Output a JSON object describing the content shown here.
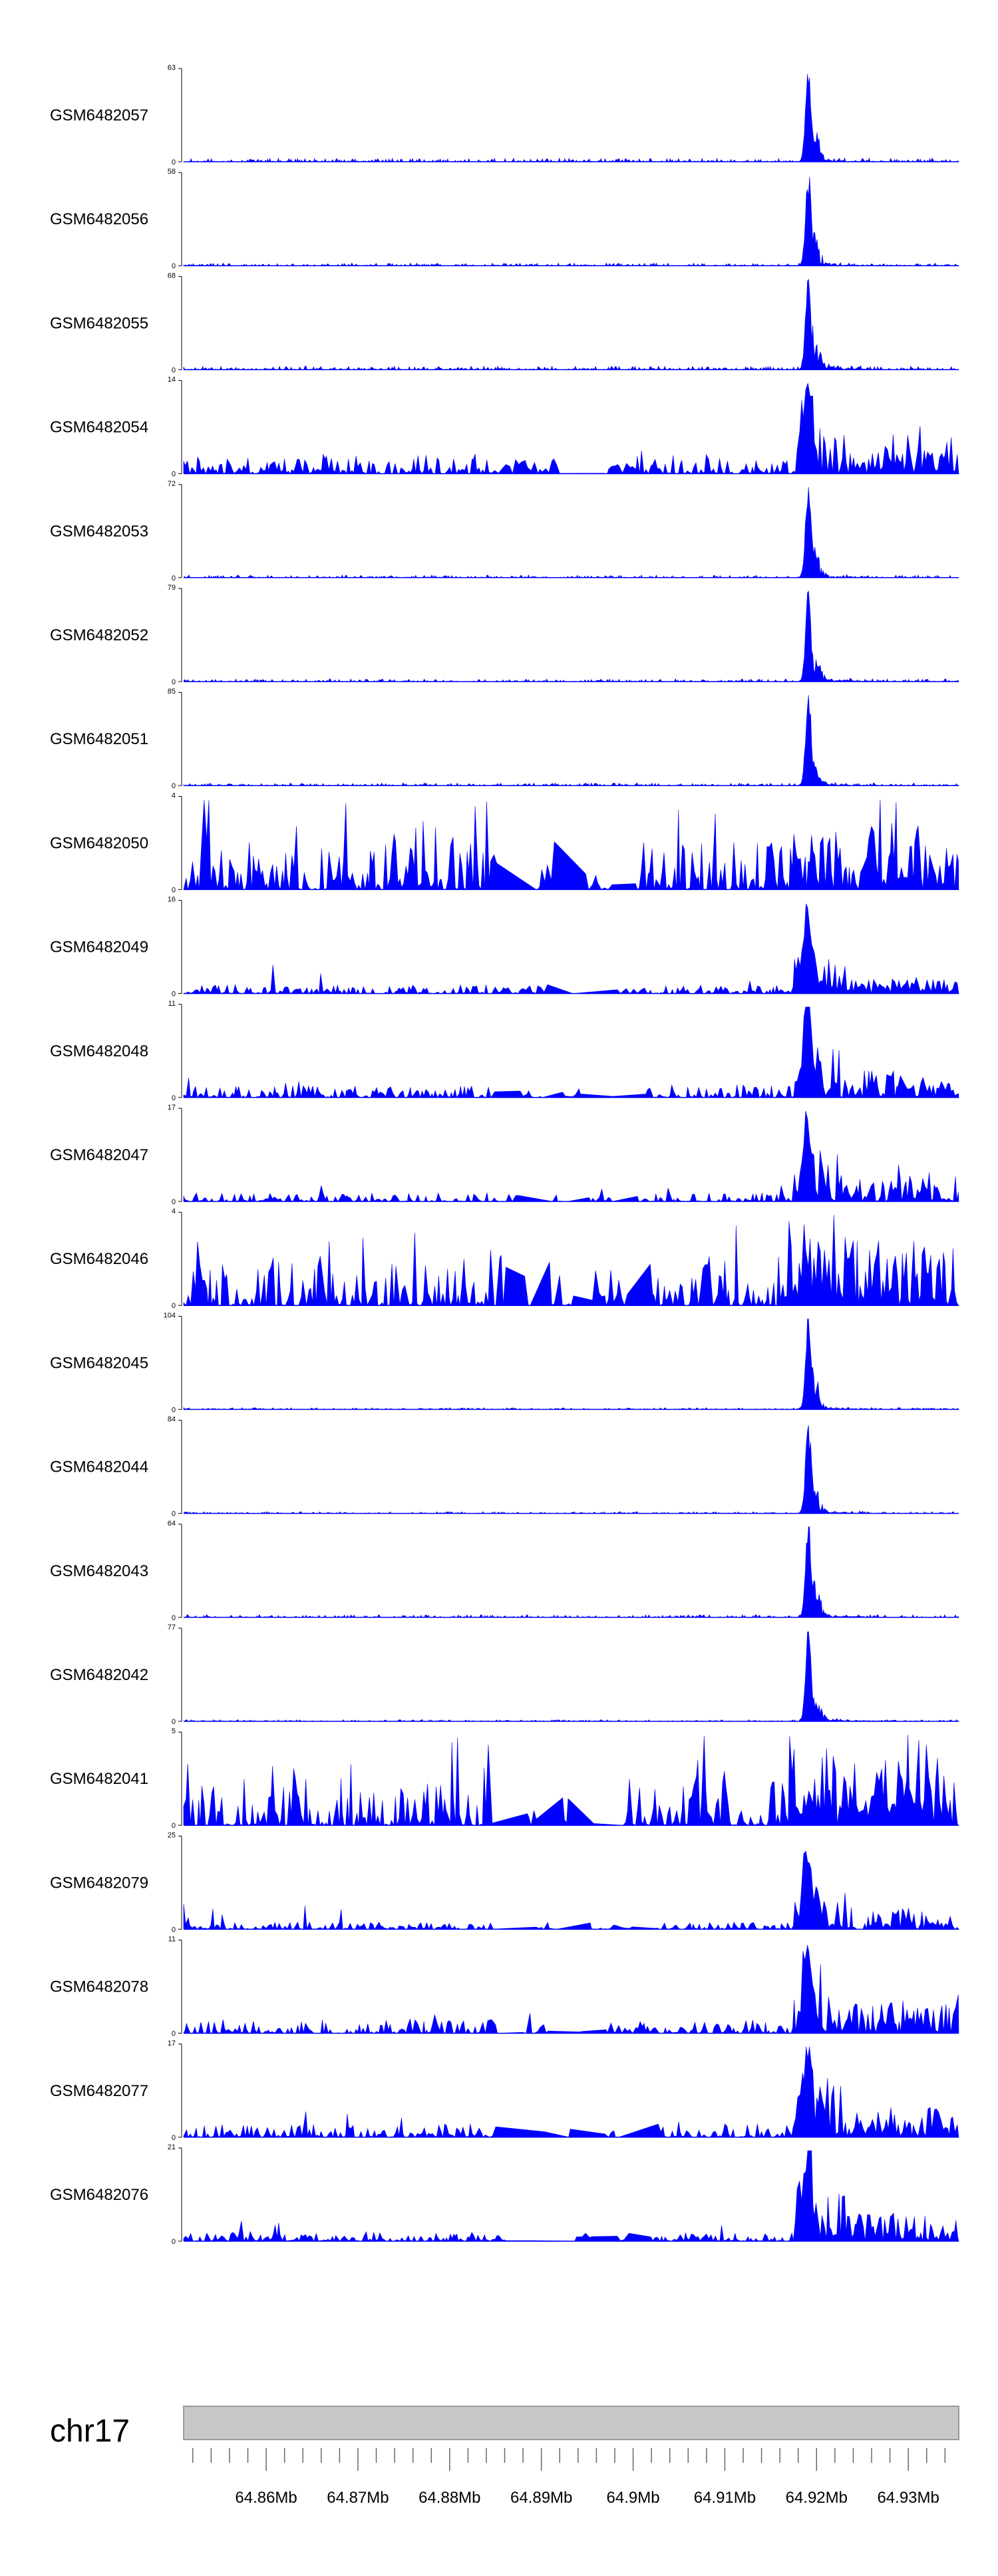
{
  "chart_data": {
    "type": "area",
    "color": "#0000ff",
    "chromosome": "chr17",
    "x_range": [
      64.851,
      64.9355
    ],
    "x_unit": "Mb",
    "x_ticks": [
      "64.86Mb",
      "64.87Mb",
      "64.88Mb",
      "64.89Mb",
      "64.9Mb",
      "64.91Mb",
      "64.92Mb",
      "64.93Mb"
    ],
    "peak_center": 64.919,
    "tracks": [
      {
        "name": "GSM6482057",
        "ymax": "63",
        "ymin": "0",
        "profile": "peak",
        "noise": 0.04,
        "tail": 0.06
      },
      {
        "name": "GSM6482056",
        "ymax": "58",
        "ymin": "0",
        "profile": "peak",
        "noise": 0.03,
        "tail": 0.05
      },
      {
        "name": "GSM6482055",
        "ymax": "68",
        "ymin": "0",
        "profile": "peak",
        "noise": 0.04,
        "tail": 0.08
      },
      {
        "name": "GSM6482054",
        "ymax": "14",
        "ymin": "0",
        "profile": "noisy",
        "noise": 0.22,
        "tail": 0.25
      },
      {
        "name": "GSM6482053",
        "ymax": "72",
        "ymin": "0",
        "profile": "peak",
        "noise": 0.03,
        "tail": 0.05
      },
      {
        "name": "GSM6482052",
        "ymax": "79",
        "ymin": "0",
        "profile": "peak",
        "noise": 0.03,
        "tail": 0.06
      },
      {
        "name": "GSM6482051",
        "ymax": "85",
        "ymin": "0",
        "profile": "peak",
        "noise": 0.03,
        "tail": 0.04
      },
      {
        "name": "GSM6482050",
        "ymax": "4",
        "ymin": "0",
        "profile": "random",
        "noise": 0.5,
        "tail": 0.5
      },
      {
        "name": "GSM6482049",
        "ymax": "16",
        "ymin": "0",
        "profile": "noisy",
        "noise": 0.1,
        "tail": 0.15
      },
      {
        "name": "GSM6482048",
        "ymax": "11",
        "ymin": "0",
        "profile": "noisy",
        "noise": 0.14,
        "tail": 0.25
      },
      {
        "name": "GSM6482047",
        "ymax": "17",
        "ymin": "0",
        "profile": "noisy",
        "noise": 0.1,
        "tail": 0.25
      },
      {
        "name": "GSM6482046",
        "ymax": "4",
        "ymin": "0",
        "profile": "random",
        "noise": 0.45,
        "tail": 0.6
      },
      {
        "name": "GSM6482045",
        "ymax": "104",
        "ymin": "0",
        "profile": "peak",
        "noise": 0.02,
        "tail": 0.04
      },
      {
        "name": "GSM6482044",
        "ymax": "84",
        "ymin": "0",
        "profile": "peak",
        "noise": 0.02,
        "tail": 0.05
      },
      {
        "name": "GSM6482043",
        "ymax": "64",
        "ymin": "0",
        "profile": "peak",
        "noise": 0.03,
        "tail": 0.06
      },
      {
        "name": "GSM6482042",
        "ymax": "77",
        "ymin": "0",
        "profile": "peak",
        "noise": 0.02,
        "tail": 0.06
      },
      {
        "name": "GSM6482041",
        "ymax": "5",
        "ymin": "0",
        "profile": "random",
        "noise": 0.45,
        "tail": 0.6
      },
      {
        "name": "GSM6482079",
        "ymax": "25",
        "ymin": "0",
        "profile": "noisy",
        "noise": 0.08,
        "tail": 0.2
      },
      {
        "name": "GSM6482078",
        "ymax": "11",
        "ymin": "0",
        "profile": "noisy",
        "noise": 0.16,
        "tail": 0.3
      },
      {
        "name": "GSM6482077",
        "ymax": "17",
        "ymin": "0",
        "profile": "noisy",
        "noise": 0.15,
        "tail": 0.3
      },
      {
        "name": "GSM6482076",
        "ymax": "21",
        "ymin": "0",
        "profile": "noisy",
        "noise": 0.1,
        "tail": 0.3
      }
    ]
  }
}
